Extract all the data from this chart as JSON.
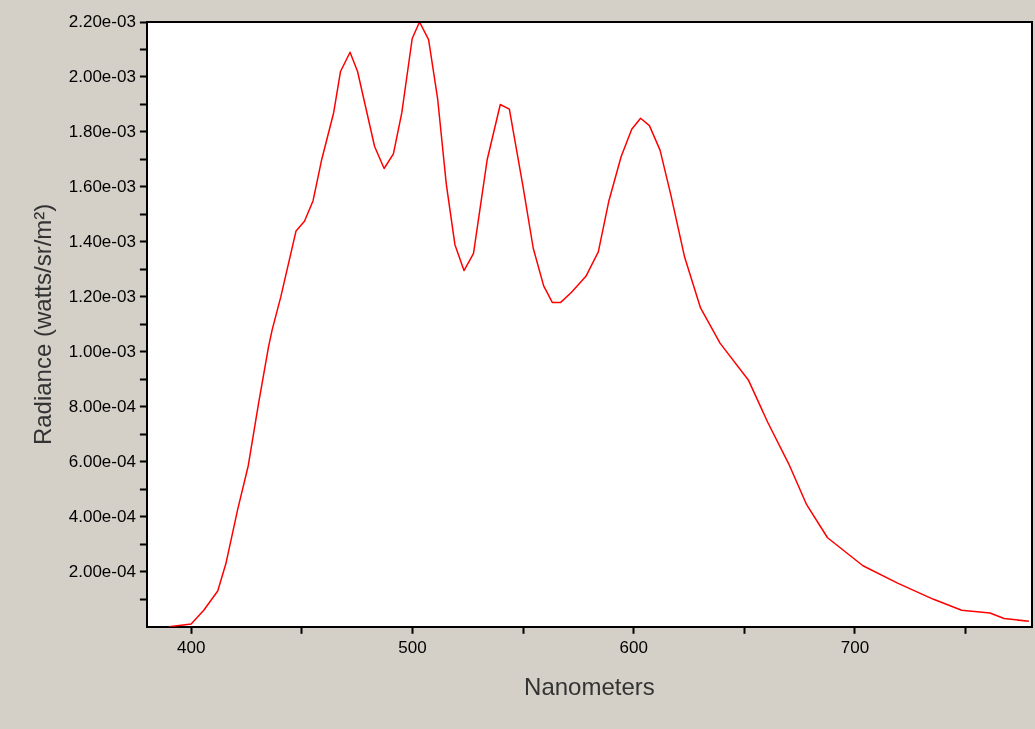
{
  "chart_data": {
    "type": "line",
    "xlabel": "Nanometers",
    "ylabel": "Radiance (watts/sr/m²)",
    "series": [
      {
        "color": "#ff0000",
        "x": [
          390,
          400,
          405.7,
          412,
          415.7,
          421,
          425.8,
          430.4,
          435,
          436.6,
          440.5,
          447.4,
          451.2,
          455.1,
          459,
          464.4,
          467.5,
          471.8,
          475.2,
          482.9,
          487.2,
          491.4,
          495.2,
          499.9,
          503.2,
          507.3,
          511.4,
          515.3,
          519.2,
          523.3,
          527.6,
          533.8,
          539.7,
          543.8,
          550,
          554.6,
          559.3,
          563.2,
          567,
          571.9,
          578.4,
          584,
          588.8,
          594.3,
          599.1,
          603.1,
          607.1,
          611.9,
          616.7,
          623,
          630.2,
          639,
          651.8,
          660.5,
          670.1,
          678.1,
          687.6,
          703.6,
          719.5,
          735.5,
          748.2,
          761,
          767.4,
          778.6
        ],
        "values": [
          0,
          1e-05,
          6e-05,
          0.00013,
          0.00023,
          0.000426,
          0.000586,
          0.00081,
          0.00102,
          0.00108,
          0.0012,
          0.00144,
          0.001475,
          0.00155,
          0.0017,
          0.00187,
          0.00202,
          0.00209,
          0.00202,
          0.001747,
          0.001667,
          0.00172,
          0.00187,
          0.00214,
          0.0022,
          0.002136,
          0.00192,
          0.00161,
          0.00139,
          0.001296,
          0.001358,
          0.0017,
          0.0019,
          0.001883,
          0.0016,
          0.001377,
          0.00124,
          0.00118,
          0.00118,
          0.001217,
          0.001275,
          0.001364,
          0.00155,
          0.00171,
          0.00181,
          0.00185,
          0.001823,
          0.001734,
          0.001574,
          0.001345,
          0.00116,
          0.001032,
          0.000898,
          0.000745,
          0.000592,
          0.000445,
          0.000324,
          0.000222,
          0.000158,
          0.0001,
          6e-05,
          5e-05,
          3e-05,
          2e-05
        ]
      }
    ],
    "xlim": [
      380,
      780
    ],
    "xticks": [
      400,
      {
        "value": 450,
        "label": null
      },
      500,
      {
        "value": 550,
        "label": null
      },
      600,
      {
        "value": 650,
        "label": null
      },
      700,
      {
        "value": 750,
        "label": null
      }
    ],
    "ylim": [
      0,
      0.0022
    ],
    "yticks": [
      {
        "value": 0.0001,
        "label": null
      },
      {
        "value": 0.0002,
        "label": "2.00e-04"
      },
      {
        "value": 0.0003,
        "label": null
      },
      {
        "value": 0.0004,
        "label": "4.00e-04"
      },
      {
        "value": 0.0005,
        "label": null
      },
      {
        "value": 0.0006,
        "label": "6.00e-04"
      },
      {
        "value": 0.0007,
        "label": null
      },
      {
        "value": 0.0008,
        "label": "8.00e-04"
      },
      {
        "value": 0.0009,
        "label": null
      },
      {
        "value": 0.001,
        "label": "1.00e-03"
      },
      {
        "value": 0.0011,
        "label": null
      },
      {
        "value": 0.0012,
        "label": "1.20e-03"
      },
      {
        "value": 0.0013,
        "label": null
      },
      {
        "value": 0.0014,
        "label": "1.40e-03"
      },
      {
        "value": 0.0015,
        "label": null
      },
      {
        "value": 0.0016,
        "label": "1.60e-03"
      },
      {
        "value": 0.0017,
        "label": null
      },
      {
        "value": 0.0018,
        "label": "1.80e-03"
      },
      {
        "value": 0.0019,
        "label": null
      },
      {
        "value": 0.002,
        "label": "2.00e-03"
      },
      {
        "value": 0.0021,
        "label": null
      },
      {
        "value": 0.0022,
        "label": "2.20e-03"
      }
    ],
    "grid": false,
    "legend": false,
    "marker": "none",
    "line_style": "solid"
  }
}
